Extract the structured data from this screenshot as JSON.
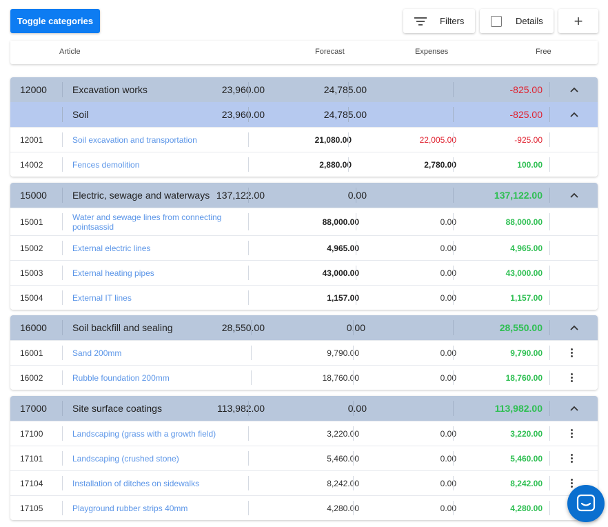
{
  "toolbar": {
    "toggle_label": "Toggle categories",
    "filters_label": "Filters",
    "details_label": "Details",
    "add_label": "+"
  },
  "columns": {
    "article": "Article",
    "forecast": "Forecast",
    "expenses": "Expenses",
    "free": "Free"
  },
  "groups": [
    {
      "code": "12000",
      "name": "Excavation works",
      "forecast": "23,960.00",
      "expenses": "24,785.00",
      "free": "-825.00",
      "sub": {
        "name": "Soil",
        "forecast": "23,960.00",
        "expenses": "24,785.00",
        "free": "-825.00"
      },
      "rows": [
        {
          "code": "12001",
          "name": "Soil excavation and transportation",
          "forecast": "21,080.00",
          "expenses": "22,005.00",
          "free": "-925.00"
        },
        {
          "code": "14002",
          "name": "Fences demolition",
          "forecast": "2,880.00",
          "expenses": "2,780.00",
          "free": "100.00"
        }
      ]
    },
    {
      "code": "15000",
      "name": "Electric, sewage and waterways",
      "forecast": "137,122.00",
      "expenses": "0.00",
      "free": "137,122.00",
      "rows": [
        {
          "code": "15001",
          "name": "Water and sewage lines from connecting pointsassid",
          "forecast": "88,000.00",
          "expenses": "0.00",
          "free": "88,000.00"
        },
        {
          "code": "15002",
          "name": "External electric lines",
          "forecast": "4,965.00",
          "expenses": "0.00",
          "free": "4,965.00"
        },
        {
          "code": "15003",
          "name": "External heating pipes",
          "forecast": "43,000.00",
          "expenses": "0.00",
          "free": "43,000.00"
        },
        {
          "code": "15004",
          "name": "External IT lines",
          "forecast": "1,157.00",
          "expenses": "0.00",
          "free": "1,157.00"
        }
      ]
    },
    {
      "code": "16000",
      "name": "Soil backfill and sealing",
      "forecast": "28,550.00",
      "expenses": "0.00",
      "free": "28,550.00",
      "rows": [
        {
          "code": "16001",
          "name": "Sand 200mm",
          "forecast": "9,790.00",
          "expenses": "0.00",
          "free": "9,790.00"
        },
        {
          "code": "16002",
          "name": "Rubble foundation 200mm",
          "forecast": "18,760.00",
          "expenses": "0.00",
          "free": "18,760.00"
        }
      ]
    },
    {
      "code": "17000",
      "name": "Site surface coatings",
      "forecast": "113,982.00",
      "expenses": "0.00",
      "free": "113,982.00",
      "rows": [
        {
          "code": "17100",
          "name": "Landscaping (grass with a growth field)",
          "forecast": "3,220.00",
          "expenses": "0.00",
          "free": "3,220.00"
        },
        {
          "code": "17101",
          "name": "Landscaping (crushed stone)",
          "forecast": "5,460.00",
          "expenses": "0.00",
          "free": "5,460.00"
        },
        {
          "code": "17104",
          "name": "Installation of ditches on sidewalks",
          "forecast": "8,242.00",
          "expenses": "0.00",
          "free": "8,242.00"
        },
        {
          "code": "17105",
          "name": "Playground rubber strips 40mm",
          "forecast": "4,280.00",
          "expenses": "0.00",
          "free": "4,280.00"
        }
      ]
    }
  ],
  "icons": {
    "filter": "filter-icon",
    "checkbox": "checkbox-icon",
    "plus": "plus-icon",
    "collapse": "chevron-up-icon",
    "menu": "more-vertical-icon",
    "chat": "chat-icon"
  },
  "colors": {
    "accent": "#0d7cf2",
    "category_bg": "#b8c7dc",
    "subcategory_bg": "#b6c9ef",
    "link": "#5c96e8",
    "negative": "#e0202e",
    "positive": "#2ebf52"
  }
}
